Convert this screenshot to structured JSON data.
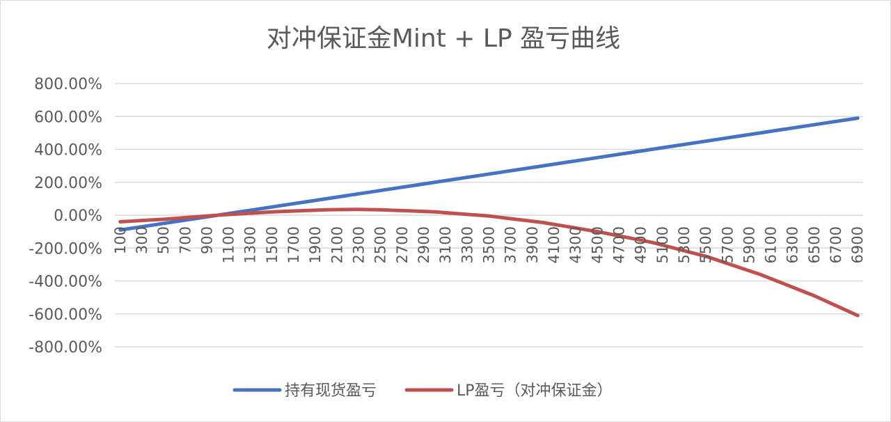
{
  "chart_data": {
    "type": "line",
    "title": "对冲保证金Mint + LP 盈亏曲线",
    "xlabel": "",
    "ylabel": "",
    "x_start": 100,
    "x_end": 6900,
    "x_step": 100,
    "x_tick_labels": [
      "100",
      "300",
      "500",
      "700",
      "900",
      "1100",
      "1300",
      "1500",
      "1700",
      "1900",
      "2100",
      "2300",
      "2500",
      "2700",
      "2900",
      "3100",
      "3300",
      "3500",
      "3700",
      "3900",
      "4100",
      "4300",
      "4500",
      "4700",
      "4900",
      "5100",
      "5300",
      "5500",
      "5700",
      "5900",
      "6100",
      "6300",
      "6500",
      "6700",
      "6900"
    ],
    "y_tick_labels": [
      "800.00%",
      "600.00%",
      "400.00%",
      "200.00%",
      "0.00%",
      "-200.00%",
      "-400.00%",
      "-600.00%",
      "-800.00%"
    ],
    "ylim": [
      -8,
      8
    ],
    "y_unit": "ratio (1 = 100%)",
    "grid": true,
    "legend_position": "bottom",
    "series": [
      {
        "name": "持有现货盈亏",
        "color": "#4472C4",
        "x": [
          100,
          1000,
          2000,
          3000,
          4000,
          5000,
          6000,
          6900
        ],
        "values": [
          -0.9,
          0.0,
          1.0,
          2.0,
          3.0,
          4.0,
          5.0,
          5.9
        ]
      },
      {
        "name": "LP盈亏（对冲保证金）",
        "color": "#C0504D",
        "x": [
          100,
          500,
          1000,
          1500,
          2000,
          2300,
          2500,
          3000,
          3500,
          4000,
          4500,
          5000,
          5500,
          6000,
          6500,
          6900
        ],
        "values": [
          -0.4,
          -0.25,
          0.0,
          0.2,
          0.33,
          0.35,
          0.33,
          0.2,
          -0.05,
          -0.45,
          -1.0,
          -1.65,
          -2.5,
          -3.6,
          -4.9,
          -6.1
        ]
      }
    ]
  }
}
